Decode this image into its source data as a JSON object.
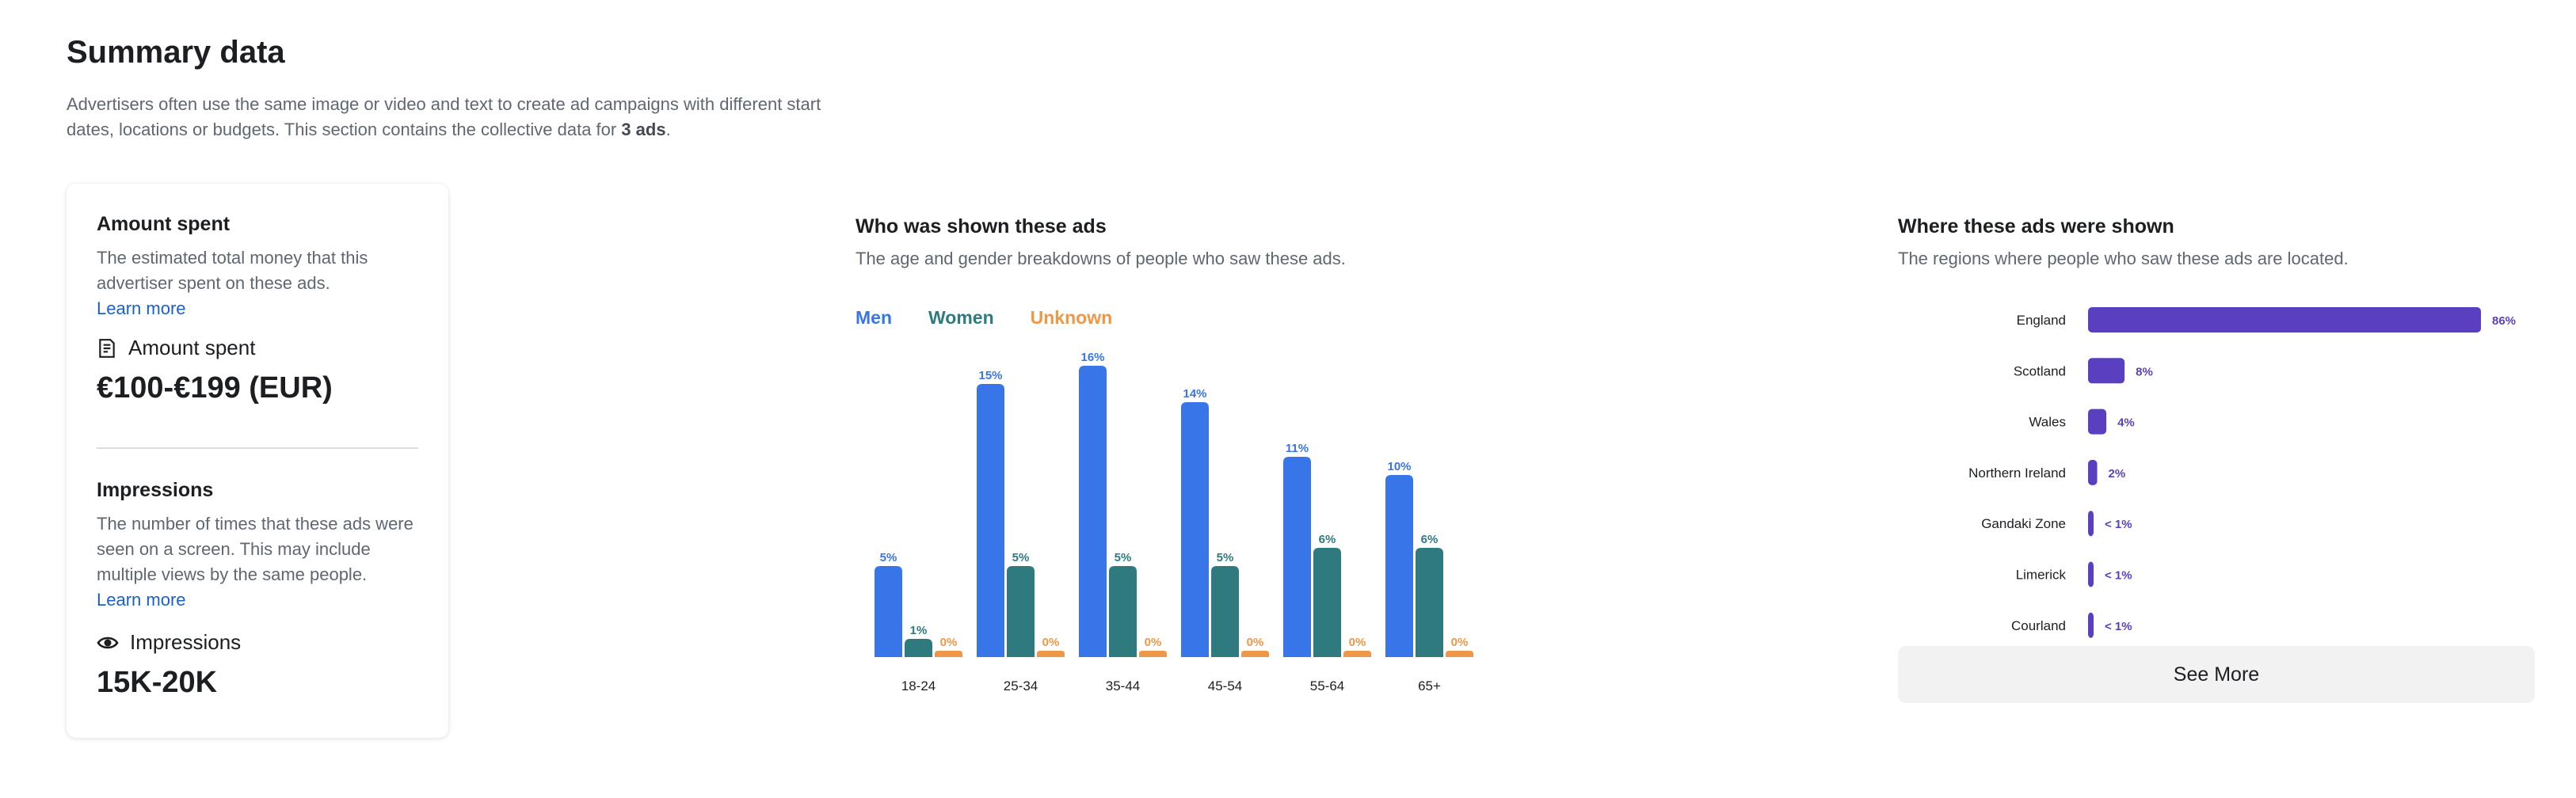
{
  "page": {
    "title": "Summary data",
    "intro_text": "Advertisers often use the same image or video and text to create ad campaigns with different start dates, locations or budgets. This section contains the collective data for ",
    "intro_bold": "3 ads",
    "intro_end": "."
  },
  "amount": {
    "title": "Amount spent",
    "description": "The estimated total money that this advertiser spent on these ads.",
    "learn_more": "Learn more",
    "metric_label": "Amount spent",
    "metric_icon": "receipt-icon",
    "value": "€100-€199 (EUR)"
  },
  "impressions": {
    "title": "Impressions",
    "description": "The number of times that these ads were seen on a screen. This may include multiple views by the same people.",
    "learn_more": "Learn more",
    "metric_label": "Impressions",
    "metric_icon": "eye-icon",
    "value": "15K-20K"
  },
  "demographics": {
    "title": "Who was shown these ads",
    "subtitle": "The age and gender breakdowns of people who saw these ads.",
    "legend": {
      "men": "Men",
      "women": "Women",
      "unknown": "Unknown"
    }
  },
  "regions": {
    "title": "Where these ads were shown",
    "subtitle": "The regions where people who saw these ads are located.",
    "see_more": "See More"
  },
  "colors": {
    "men": "#3875e8",
    "women": "#2f7a7e",
    "unknown": "#ee9747",
    "region": "#5a3fc0"
  },
  "chart_data": [
    {
      "type": "bar",
      "categories": [
        "18-24",
        "25-34",
        "35-44",
        "45-54",
        "55-64",
        "65+"
      ],
      "series": [
        {
          "name": "Men",
          "values": [
            5,
            15,
            16,
            14,
            11,
            10
          ],
          "labels": [
            "5%",
            "15%",
            "16%",
            "14%",
            "11%",
            "10%"
          ]
        },
        {
          "name": "Women",
          "values": [
            1,
            5,
            5,
            5,
            6,
            6
          ],
          "labels": [
            "1%",
            "5%",
            "5%",
            "5%",
            "6%",
            "6%"
          ]
        },
        {
          "name": "Unknown",
          "values": [
            0,
            0,
            0,
            0,
            0,
            0
          ],
          "labels": [
            "0%",
            "0%",
            "0%",
            "0%",
            "0%",
            "0%"
          ]
        }
      ],
      "title": "Who was shown these ads",
      "ylim": [
        0,
        16
      ]
    },
    {
      "type": "bar",
      "orientation": "horizontal",
      "categories": [
        "England",
        "Scotland",
        "Wales",
        "Northern Ireland",
        "Gandaki Zone",
        "Limerick",
        "Courland"
      ],
      "values": [
        86,
        8,
        4,
        2,
        0.5,
        0.5,
        0.5
      ],
      "labels": [
        "86%",
        "8%",
        "4%",
        "2%",
        "< 1%",
        "< 1%",
        "< 1%"
      ],
      "title": "Where these ads were shown",
      "xlim": [
        0,
        86
      ]
    }
  ]
}
